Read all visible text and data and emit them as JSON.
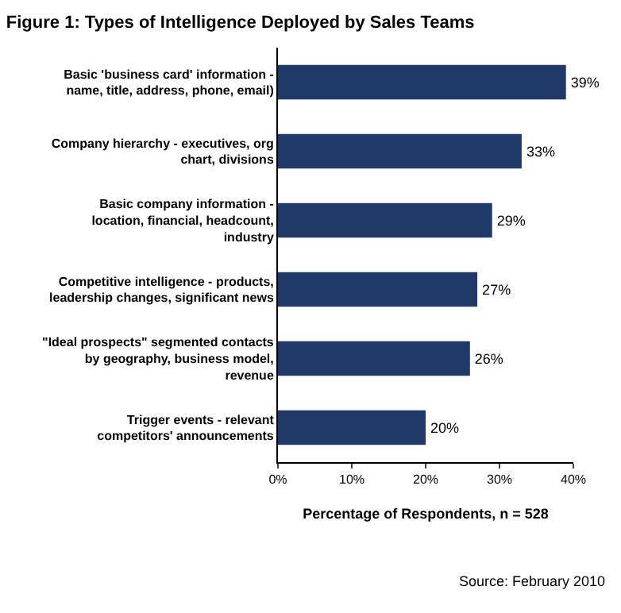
{
  "chart_data": {
    "type": "bar",
    "orientation": "horizontal",
    "title": "Figure 1: Types of Intelligence Deployed by Sales Teams",
    "categories": [
      "Basic 'business card' information - name, title, address, phone, email)",
      "Company hierarchy - executives, org chart, divisions",
      "Basic company information - location, financial, headcount, industry",
      "Competitive intelligence - products, leadership changes, significant news",
      "\"Ideal prospects\" segmented contacts by geography, business model, revenue",
      "Trigger events - relevant competitors' announcements"
    ],
    "values": [
      39,
      33,
      29,
      27,
      26,
      20
    ],
    "value_labels": [
      "39%",
      "33%",
      "29%",
      "27%",
      "26%",
      "20%"
    ],
    "color": "#1f3a68",
    "xlim": [
      0,
      40
    ],
    "xticks": [
      {
        "value": 0,
        "label": "0%"
      },
      {
        "value": 10,
        "label": "10%"
      },
      {
        "value": 20,
        "label": "20%"
      },
      {
        "value": 30,
        "label": "30%"
      },
      {
        "value": 40,
        "label": "40%"
      }
    ],
    "xlabel": "Percentage of Respondents, n = 528",
    "annotations": [
      "Source: February 2010"
    ],
    "legend": false
  }
}
